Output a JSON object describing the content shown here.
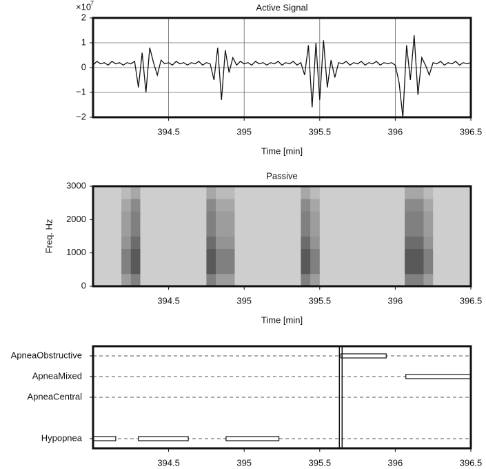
{
  "chart_data": [
    {
      "type": "line",
      "title": "Active Signal",
      "xlabel": "Time [min]",
      "y_multiplier": {
        "base": "×10",
        "exponent": "7"
      },
      "xlim": [
        394,
        396.5
      ],
      "xticks": [
        394.5,
        395,
        395.5,
        396,
        396.5
      ],
      "ylim": [
        -2,
        2
      ],
      "yticks": [
        {
          "value": -2,
          "label": "−2"
        },
        {
          "value": -1,
          "label": "−1"
        },
        0,
        1,
        2
      ],
      "grid": true,
      "color": "#111111",
      "x": [
        394,
        394.025,
        394.05,
        394.075,
        394.1,
        394.125,
        394.15,
        394.175,
        394.2,
        394.225,
        394.25,
        394.275,
        394.3,
        394.325,
        394.35,
        394.375,
        394.4,
        394.425,
        394.45,
        394.475,
        394.5,
        394.525,
        394.55,
        394.575,
        394.6,
        394.625,
        394.65,
        394.675,
        394.7,
        394.725,
        394.75,
        394.775,
        394.8,
        394.825,
        394.85,
        394.875,
        394.9,
        394.925,
        394.95,
        394.975,
        395,
        395.025,
        395.05,
        395.075,
        395.1,
        395.125,
        395.15,
        395.175,
        395.2,
        395.225,
        395.25,
        395.275,
        395.3,
        395.325,
        395.35,
        395.375,
        395.4,
        395.425,
        395.45,
        395.475,
        395.5,
        395.525,
        395.55,
        395.575,
        395.6,
        395.625,
        395.65,
        395.675,
        395.7,
        395.725,
        395.75,
        395.775,
        395.8,
        395.825,
        395.85,
        395.875,
        395.9,
        395.925,
        395.95,
        395.975,
        396,
        396.025,
        396.05,
        396.075,
        396.1,
        396.125,
        396.15,
        396.175,
        396.2,
        396.225,
        396.25,
        396.275,
        396.3,
        396.325,
        396.35,
        396.375,
        396.4,
        396.425,
        396.45,
        396.475,
        396.5
      ],
      "values": [
        0.1,
        0.25,
        0.15,
        0.2,
        0.1,
        0.25,
        0.15,
        0.2,
        0.1,
        0.2,
        0.15,
        0.25,
        -0.8,
        0.6,
        -1.0,
        0.8,
        0.2,
        -0.3,
        0.3,
        0.15,
        0.2,
        0.1,
        0.25,
        0.15,
        0.2,
        0.1,
        0.2,
        0.15,
        0.25,
        0.1,
        0.2,
        0.15,
        -0.5,
        0.8,
        -1.3,
        0.7,
        -0.2,
        0.4,
        0.1,
        0.25,
        0.15,
        0.2,
        0.1,
        0.25,
        0.15,
        0.2,
        0.1,
        0.2,
        0.15,
        0.25,
        0.1,
        0.2,
        0.15,
        0.25,
        0.1,
        0.2,
        -0.3,
        0.9,
        -1.6,
        1.0,
        -1.3,
        1.1,
        -0.8,
        0.3,
        -0.4,
        0.2,
        0.15,
        0.25,
        0.1,
        0.2,
        0.15,
        0.25,
        0.1,
        0.2,
        0.15,
        0.25,
        0.1,
        0.2,
        0.15,
        0.2,
        0.1,
        -0.6,
        -2.0,
        0.9,
        -0.5,
        1.3,
        -1.1,
        0.4,
        0.1,
        -0.3,
        0.2,
        0.15,
        0.25,
        0.1,
        0.2,
        0.15,
        0.25,
        0.1,
        0.2,
        0.15,
        0.2
      ]
    },
    {
      "type": "heatmap",
      "title": "Passive",
      "xlabel": "Time [min]",
      "ylabel": "Freq. Hz",
      "xlim": [
        394,
        396.5
      ],
      "xticks": [
        394.5,
        395,
        395.5,
        396,
        396.5
      ],
      "ylim": [
        0,
        3000
      ],
      "yticks": [
        0,
        1000,
        2000,
        3000
      ],
      "color_low": "#e2e2e2",
      "color_high": "#1e1e1e",
      "zlim": [
        0,
        1
      ],
      "x_edges": [
        394,
        394.0625,
        394.125,
        394.1875,
        394.25,
        394.3125,
        394.375,
        394.4375,
        394.5,
        394.5625,
        394.625,
        394.6875,
        394.75,
        394.8125,
        394.875,
        394.9375,
        395,
        395.0625,
        395.125,
        395.1875,
        395.25,
        395.3125,
        395.375,
        395.4375,
        395.5,
        395.5625,
        395.625,
        395.6875,
        395.75,
        395.8125,
        395.875,
        395.9375,
        396,
        396.0625,
        396.125,
        396.1875,
        396.25,
        396.3125,
        396.375,
        396.4375,
        396.5
      ],
      "y_edges": [
        0,
        375,
        750,
        1125,
        1500,
        1875,
        2250,
        2625,
        3000
      ],
      "z": [
        [
          0.1,
          0.1,
          0.1,
          0.35,
          0.5,
          0.1,
          0.1,
          0.1,
          0.1,
          0.1,
          0.1,
          0.1,
          0.5,
          0.35,
          0.35,
          0.1,
          0.1,
          0.1,
          0.1,
          0.1,
          0.1,
          0.1,
          0.5,
          0.35,
          0.1,
          0.1,
          0.1,
          0.1,
          0.1,
          0.1,
          0.1,
          0.1,
          0.1,
          0.5,
          0.5,
          0.35,
          0.1,
          0.1,
          0.1,
          0.1
        ],
        [
          0.1,
          0.1,
          0.1,
          0.5,
          0.7,
          0.1,
          0.1,
          0.1,
          0.1,
          0.1,
          0.1,
          0.1,
          0.7,
          0.5,
          0.5,
          0.1,
          0.1,
          0.1,
          0.1,
          0.1,
          0.1,
          0.1,
          0.7,
          0.5,
          0.1,
          0.1,
          0.1,
          0.1,
          0.1,
          0.1,
          0.1,
          0.1,
          0.1,
          0.7,
          0.7,
          0.5,
          0.1,
          0.1,
          0.1,
          0.1
        ],
        [
          0.1,
          0.1,
          0.1,
          0.5,
          0.7,
          0.1,
          0.1,
          0.1,
          0.1,
          0.1,
          0.1,
          0.1,
          0.7,
          0.5,
          0.5,
          0.1,
          0.1,
          0.1,
          0.1,
          0.1,
          0.1,
          0.1,
          0.7,
          0.5,
          0.1,
          0.1,
          0.1,
          0.1,
          0.1,
          0.1,
          0.1,
          0.1,
          0.1,
          0.7,
          0.7,
          0.5,
          0.1,
          0.1,
          0.1,
          0.1
        ],
        [
          0.1,
          0.1,
          0.1,
          0.4,
          0.6,
          0.1,
          0.1,
          0.1,
          0.1,
          0.1,
          0.1,
          0.1,
          0.6,
          0.4,
          0.4,
          0.1,
          0.1,
          0.1,
          0.1,
          0.1,
          0.1,
          0.1,
          0.6,
          0.4,
          0.1,
          0.1,
          0.1,
          0.1,
          0.1,
          0.1,
          0.1,
          0.1,
          0.1,
          0.6,
          0.6,
          0.4,
          0.1,
          0.1,
          0.1,
          0.1
        ],
        [
          0.1,
          0.1,
          0.1,
          0.35,
          0.5,
          0.1,
          0.1,
          0.1,
          0.1,
          0.1,
          0.1,
          0.1,
          0.5,
          0.35,
          0.35,
          0.1,
          0.1,
          0.1,
          0.1,
          0.1,
          0.1,
          0.1,
          0.5,
          0.35,
          0.1,
          0.1,
          0.1,
          0.1,
          0.1,
          0.1,
          0.1,
          0.1,
          0.1,
          0.5,
          0.5,
          0.35,
          0.1,
          0.1,
          0.1,
          0.1
        ],
        [
          0.1,
          0.1,
          0.1,
          0.35,
          0.5,
          0.1,
          0.1,
          0.1,
          0.1,
          0.1,
          0.1,
          0.1,
          0.5,
          0.35,
          0.35,
          0.1,
          0.1,
          0.1,
          0.1,
          0.1,
          0.1,
          0.1,
          0.5,
          0.35,
          0.1,
          0.1,
          0.1,
          0.1,
          0.1,
          0.1,
          0.1,
          0.1,
          0.1,
          0.5,
          0.5,
          0.35,
          0.1,
          0.1,
          0.1,
          0.1
        ],
        [
          0.1,
          0.1,
          0.1,
          0.3,
          0.45,
          0.1,
          0.1,
          0.1,
          0.1,
          0.1,
          0.1,
          0.1,
          0.45,
          0.3,
          0.3,
          0.1,
          0.1,
          0.1,
          0.1,
          0.1,
          0.1,
          0.1,
          0.45,
          0.3,
          0.1,
          0.1,
          0.1,
          0.1,
          0.1,
          0.1,
          0.1,
          0.1,
          0.1,
          0.45,
          0.45,
          0.3,
          0.1,
          0.1,
          0.1,
          0.1
        ],
        [
          0.1,
          0.1,
          0.1,
          0.2,
          0.3,
          0.1,
          0.1,
          0.1,
          0.1,
          0.1,
          0.1,
          0.1,
          0.3,
          0.2,
          0.2,
          0.1,
          0.1,
          0.1,
          0.1,
          0.1,
          0.1,
          0.1,
          0.3,
          0.2,
          0.1,
          0.1,
          0.1,
          0.1,
          0.1,
          0.1,
          0.1,
          0.1,
          0.1,
          0.3,
          0.3,
          0.2,
          0.1,
          0.1,
          0.1,
          0.1
        ]
      ]
    },
    {
      "type": "timeline",
      "xlim": [
        394,
        396.5
      ],
      "xticks": [
        394.5,
        395,
        395.5,
        396,
        396.5
      ],
      "categories": [
        "ApneaObstructive",
        "ApneaMixed",
        "ApneaCentral",
        null,
        "Hypopnea"
      ],
      "ranges": [
        [
          [
            395.64,
            395.94
          ]
        ],
        [
          [
            396.07,
            396.5
          ]
        ],
        [],
        [],
        [
          [
            394,
            394.15
          ],
          [
            394.3,
            394.63
          ],
          [
            394.88,
            395.23
          ]
        ]
      ],
      "vline_x": 395.63,
      "grid": true
    }
  ]
}
